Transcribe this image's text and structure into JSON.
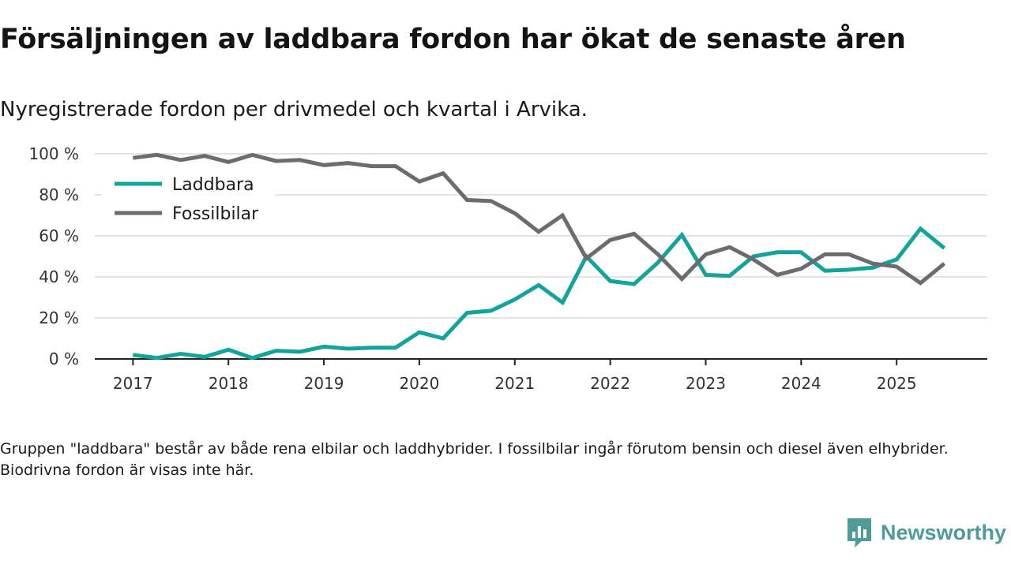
{
  "header": {
    "title": "Försäljningen av laddbara fordon har ökat de senaste åren",
    "subtitle": "Nyregistrerade fordon per drivmedel och kvartal i Arvika."
  },
  "footnote": "Gruppen \"laddbara\" består av både rena elbilar och laddhybrider. I fossilbilar ingår förutom bensin och diesel även elhybrider. Biodrivna fordon är visas inte här.",
  "brand": {
    "name": "Newsworthy",
    "icon": "newsworthy-logo-icon"
  },
  "colors": {
    "laddbara": "#12a39a",
    "fossil": "#6d6b70",
    "grid": "#dcdcdc",
    "axis": "#222222",
    "brand": "#4f9a9a"
  },
  "chart_data": {
    "type": "line",
    "title": "Försäljningen av laddbara fordon har ökat de senaste åren",
    "xlabel": "",
    "ylabel": "",
    "ylim": [
      0,
      100
    ],
    "yticks": [
      0,
      20,
      40,
      60,
      80,
      100
    ],
    "ytick_labels": [
      "0 %",
      "20 %",
      "40 %",
      "60 %",
      "80 %",
      "100 %"
    ],
    "xlim": [
      2016.6,
      2025.95
    ],
    "xticks": [
      2017,
      2018,
      2019,
      2020,
      2021,
      2022,
      2023,
      2024,
      2025
    ],
    "xtick_labels": [
      "2017",
      "2018",
      "2019",
      "2020",
      "2021",
      "2022",
      "2023",
      "2024",
      "2025"
    ],
    "grid": true,
    "legend": "top-left",
    "x": [
      2017,
      2017.25,
      2017.5,
      2017.75,
      2018,
      2018.25,
      2018.5,
      2018.75,
      2019,
      2019.25,
      2019.5,
      2019.75,
      2020,
      2020.25,
      2020.5,
      2020.75,
      2021,
      2021.25,
      2021.5,
      2021.75,
      2022,
      2022.25,
      2022.5,
      2022.75,
      2023,
      2023.25,
      2023.5,
      2023.75,
      2024,
      2024.25,
      2024.5,
      2024.75,
      2025,
      2025.25,
      2025.5
    ],
    "series": [
      {
        "name": "Laddbara",
        "values": [
          2,
          0.5,
          2.5,
          1,
          4.5,
          0.5,
          4,
          3.5,
          6,
          5,
          5.5,
          5.5,
          13,
          10,
          22.5,
          23.5,
          29,
          36,
          27.5,
          50,
          38,
          36.5,
          47,
          60.5,
          41,
          40.5,
          50,
          52,
          52,
          43,
          43.5,
          44.5,
          48.5,
          63.5,
          54
        ]
      },
      {
        "name": "Fossilbilar",
        "values": [
          98,
          99.5,
          97,
          99,
          96,
          99.5,
          96.5,
          97,
          94.5,
          95.5,
          94,
          94,
          86.5,
          90.5,
          77.5,
          77,
          71,
          62,
          70,
          49,
          58,
          61,
          51,
          39,
          51,
          54.5,
          48.5,
          41,
          44,
          51,
          51,
          46.5,
          45,
          37,
          46.5
        ]
      }
    ]
  }
}
